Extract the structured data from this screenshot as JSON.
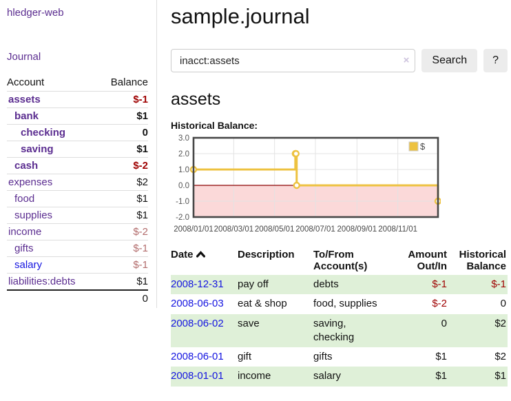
{
  "colors": {
    "accent_purple": "#5b2d90",
    "link_blue": "#1414e0",
    "negative_red": "#9e0000",
    "negative_muted_red": "#b26b6b",
    "row_green": "#dff0d8",
    "chart_line_yellow": "#edc240",
    "chart_negative_fill": "#fbd9d9",
    "chart_zero_line": "#8b0000"
  },
  "sidebar": {
    "brand": "hledger-web",
    "nav": [
      {
        "label": "Journal"
      }
    ],
    "accounts_table": {
      "headers": {
        "account": "Account",
        "balance": "Balance"
      },
      "rows": [
        {
          "account": "assets",
          "balance": "$-1",
          "indent": 1,
          "bold": true,
          "link_color": "purple",
          "balance_style": "neg"
        },
        {
          "account": "bank",
          "balance": "$1",
          "indent": 2,
          "bold": true,
          "link_color": "purple",
          "balance_style": "plain"
        },
        {
          "account": "checking",
          "balance": "0",
          "indent": 3,
          "bold": true,
          "link_color": "purple",
          "balance_style": "plain"
        },
        {
          "account": "saving",
          "balance": "$1",
          "indent": 3,
          "bold": true,
          "link_color": "purple",
          "balance_style": "plain"
        },
        {
          "account": "cash",
          "balance": "$-2",
          "indent": 2,
          "bold": true,
          "link_color": "purple",
          "balance_style": "neg"
        },
        {
          "account": "expenses",
          "balance": "$2",
          "indent": 1,
          "bold": false,
          "link_color": "purple",
          "balance_style": "plain"
        },
        {
          "account": "food",
          "balance": "$1",
          "indent": 2,
          "bold": false,
          "link_color": "purple",
          "balance_style": "plain"
        },
        {
          "account": "supplies",
          "balance": "$1",
          "indent": 2,
          "bold": false,
          "link_color": "purple",
          "balance_style": "plain"
        },
        {
          "account": "income",
          "balance": "$-2",
          "indent": 1,
          "bold": false,
          "link_color": "purple",
          "balance_style": "negm"
        },
        {
          "account": "gifts",
          "balance": "$-1",
          "indent": 2,
          "bold": false,
          "link_color": "purple",
          "balance_style": "negm"
        },
        {
          "account": "salary",
          "balance": "$-1",
          "indent": 2,
          "bold": false,
          "link_color": "blue",
          "balance_style": "negm"
        },
        {
          "account": "liabilities:debts",
          "balance": "$1",
          "indent": 1,
          "bold": false,
          "link_color": "purple",
          "balance_style": "plain"
        }
      ],
      "total": "0"
    }
  },
  "main": {
    "title": "sample.journal",
    "search": {
      "value": "inacct:assets",
      "clear_icon": "×",
      "search_button": "Search",
      "help_button": "?"
    },
    "section_title": "assets",
    "chart_title": "Historical Balance:"
  },
  "chart_data": {
    "type": "line",
    "title": "Historical Balance:",
    "step": true,
    "legend": {
      "label": "$",
      "position": "top-right"
    },
    "xlim_days": [
      0,
      365
    ],
    "ylim": [
      -2,
      3
    ],
    "grid": true,
    "series": [
      {
        "name": "$",
        "color": "#edc240",
        "points": [
          {
            "date": "2008/01/01",
            "day": 0,
            "value": 1
          },
          {
            "date": "2008/06/01",
            "day": 152,
            "value": 2
          },
          {
            "date": "2008/06/02",
            "day": 153,
            "value": 2
          },
          {
            "date": "2008/06/03",
            "day": 154,
            "value": 0
          },
          {
            "date": "2008/12/31",
            "day": 365,
            "value": -1
          }
        ]
      }
    ],
    "x_ticks": [
      {
        "label": "2008/01/01",
        "day": 0
      },
      {
        "label": "2008/03/01",
        "day": 60
      },
      {
        "label": "2008/05/01",
        "day": 121
      },
      {
        "label": "2008/07/01",
        "day": 182
      },
      {
        "label": "2008/09/01",
        "day": 244
      },
      {
        "label": "2008/11/01",
        "day": 305
      }
    ],
    "y_ticks": [
      {
        "label": "3.0",
        "value": 3
      },
      {
        "label": "2.0",
        "value": 2
      },
      {
        "label": "1.0",
        "value": 1
      },
      {
        "label": "0.0",
        "value": 0
      },
      {
        "label": "-1.0",
        "value": -1
      },
      {
        "label": "-2.0",
        "value": -2
      }
    ],
    "negative_region_color": "#fbd9d9",
    "zero_line_color": "#8b0000"
  },
  "register": {
    "headers": {
      "date": "Date",
      "sort_icon": "chevron-up",
      "description": "Description",
      "accounts": "To/From Account(s)",
      "amount": "Amount Out/In",
      "balance": "Historical Balance"
    },
    "rows": [
      {
        "date": "2008-12-31",
        "description": "pay off",
        "accounts": "debts",
        "amount": "$-1",
        "amount_negative": true,
        "balance": "$-1",
        "balance_negative": true,
        "striped": true
      },
      {
        "date": "2008-06-03",
        "description": "eat & shop",
        "accounts": "food, supplies",
        "amount": "$-2",
        "amount_negative": true,
        "balance": "0",
        "balance_negative": false,
        "striped": false
      },
      {
        "date": "2008-06-02",
        "description": "save",
        "accounts": "saving, checking",
        "amount": "0",
        "amount_negative": false,
        "balance": "$2",
        "balance_negative": false,
        "striped": true
      },
      {
        "date": "2008-06-01",
        "description": "gift",
        "accounts": "gifts",
        "amount": "$1",
        "amount_negative": false,
        "balance": "$2",
        "balance_negative": false,
        "striped": false
      },
      {
        "date": "2008-01-01",
        "description": "income",
        "accounts": "salary",
        "amount": "$1",
        "amount_negative": false,
        "balance": "$1",
        "balance_negative": false,
        "striped": true
      }
    ]
  }
}
